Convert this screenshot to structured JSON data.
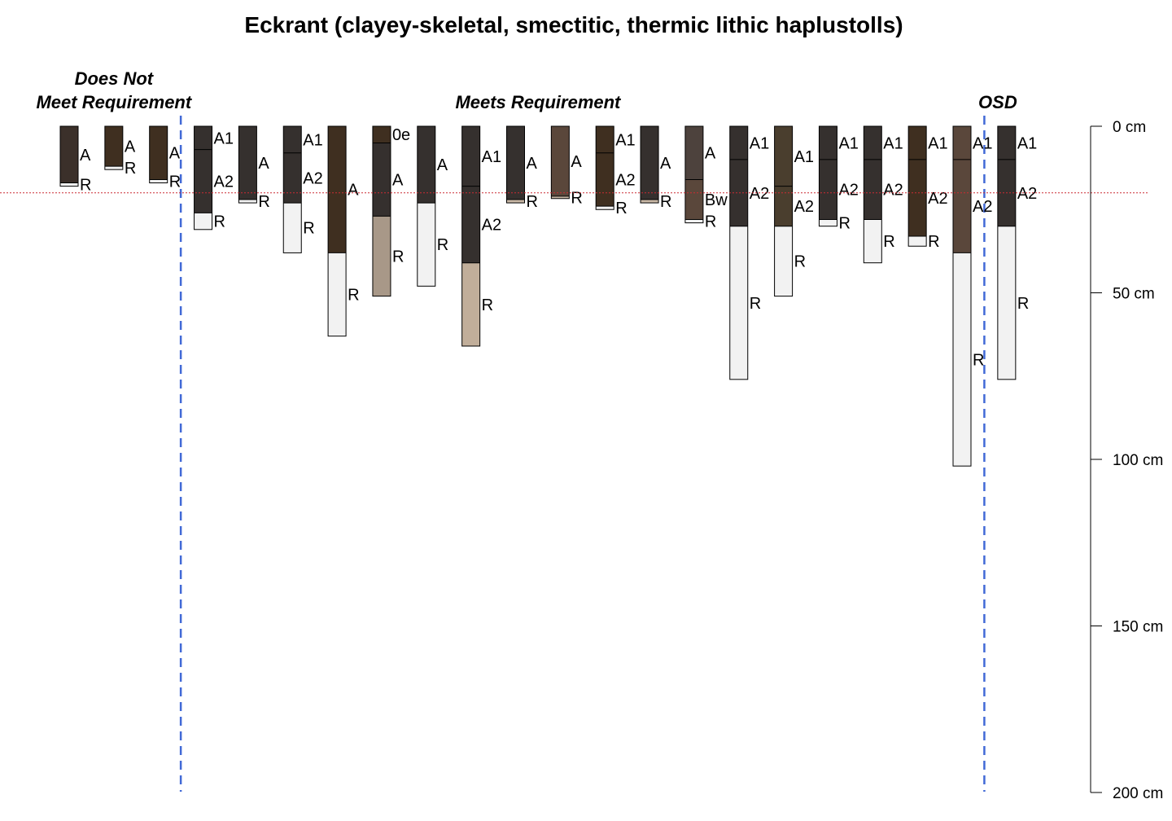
{
  "chart_data": {
    "type": "soil-profile-sketch",
    "title": "Eckrant (clayey-skeletal, smectitic, thermic lithic haplustolls)",
    "group_labels": [
      {
        "lines": [
          "Does Not",
          "Meet Requirement"
        ],
        "center_profile": 1
      },
      {
        "lines": [
          "Meets Requirement"
        ],
        "center_profile": 10.5
      },
      {
        "lines": [
          "OSD"
        ],
        "center_profile": 20.8
      }
    ],
    "group_dividers": [
      2.5,
      20.5
    ],
    "reference_depth_cm": 20,
    "reference_line_color": "#cc2b33",
    "divider_color": "#4169d6",
    "depth_axis": {
      "ticks": [
        0,
        50,
        100,
        150,
        200
      ],
      "unit": "cm",
      "range": [
        0,
        200
      ]
    },
    "profiles": [
      {
        "horizons": [
          {
            "name": "A",
            "top": 0,
            "bottom": 17,
            "color": "#3b302a"
          },
          {
            "name": "R",
            "top": 17,
            "bottom": 18,
            "color": "#f2f2f2"
          }
        ]
      },
      {
        "horizons": [
          {
            "name": "A",
            "top": 0,
            "bottom": 12,
            "color": "#3f2f20"
          },
          {
            "name": "R",
            "top": 12,
            "bottom": 13,
            "color": "#f2f2f2"
          }
        ]
      },
      {
        "horizons": [
          {
            "name": "A",
            "top": 0,
            "bottom": 16,
            "color": "#3f2f20"
          },
          {
            "name": "R",
            "top": 16,
            "bottom": 17,
            "color": "#f2f2f2"
          }
        ]
      },
      {
        "horizons": [
          {
            "name": "A1",
            "top": 0,
            "bottom": 7,
            "color": "#35302e"
          },
          {
            "name": "A2",
            "top": 7,
            "bottom": 26,
            "color": "#35302e"
          },
          {
            "name": "R",
            "top": 26,
            "bottom": 31,
            "color": "#f2f2f2"
          }
        ]
      },
      {
        "horizons": [
          {
            "name": "A",
            "top": 0,
            "bottom": 22,
            "color": "#35302e"
          },
          {
            "name": "R",
            "top": 22,
            "bottom": 23,
            "color": "#f2f2f2"
          }
        ]
      },
      {
        "horizons": [
          {
            "name": "A1",
            "top": 0,
            "bottom": 8,
            "color": "#35302e"
          },
          {
            "name": "A2",
            "top": 8,
            "bottom": 23,
            "color": "#35302e"
          },
          {
            "name": "R",
            "top": 23,
            "bottom": 38,
            "color": "#f2f2f2"
          }
        ]
      },
      {
        "horizons": [
          {
            "name": "A",
            "top": 0,
            "bottom": 38,
            "color": "#3f2f20"
          },
          {
            "name": "R",
            "top": 38,
            "bottom": 63,
            "color": "#f2f2f2"
          }
        ]
      },
      {
        "horizons": [
          {
            "name": "0e",
            "top": 0,
            "bottom": 5,
            "color": "#3f2f20"
          },
          {
            "name": "A",
            "top": 5,
            "bottom": 27,
            "color": "#35302e"
          },
          {
            "name": "R",
            "top": 27,
            "bottom": 51,
            "color": "#a89888"
          }
        ]
      },
      {
        "horizons": [
          {
            "name": "A",
            "top": 0,
            "bottom": 23,
            "color": "#35302e"
          },
          {
            "name": "R",
            "top": 23,
            "bottom": 48,
            "color": "#f2f2f2"
          }
        ]
      },
      {
        "horizons": [
          {
            "name": "A1",
            "top": 0,
            "bottom": 18,
            "color": "#35302e"
          },
          {
            "name": "A2",
            "top": 18,
            "bottom": 41,
            "color": "#35302e"
          },
          {
            "name": "R",
            "top": 41,
            "bottom": 66,
            "color": "#c1ae9a"
          }
        ]
      },
      {
        "horizons": [
          {
            "name": "A",
            "top": 0,
            "bottom": 22,
            "color": "#35302e"
          },
          {
            "name": "R",
            "top": 22,
            "bottom": 23,
            "color": "#c9b8a6"
          }
        ]
      },
      {
        "horizons": [
          {
            "name": "A",
            "top": 0,
            "bottom": 21,
            "color": "#5a473b"
          },
          {
            "name": "R",
            "top": 21,
            "bottom": 21.7,
            "color": "#c9b8a6"
          }
        ]
      },
      {
        "horizons": [
          {
            "name": "A1",
            "top": 0,
            "bottom": 8,
            "color": "#3f2f20"
          },
          {
            "name": "A2",
            "top": 8,
            "bottom": 24,
            "color": "#3f2f20"
          },
          {
            "name": "R",
            "top": 24,
            "bottom": 25,
            "color": "#f2f2f2"
          }
        ]
      },
      {
        "horizons": [
          {
            "name": "A",
            "top": 0,
            "bottom": 22,
            "color": "#35302e"
          },
          {
            "name": "R",
            "top": 22,
            "bottom": 23,
            "color": "#c9b8a6"
          }
        ]
      },
      {
        "horizons": [
          {
            "name": "A",
            "top": 0,
            "bottom": 16,
            "color": "#4d423d"
          },
          {
            "name": "Bw",
            "top": 16,
            "bottom": 28,
            "color": "#5a473b"
          },
          {
            "name": "R",
            "top": 28,
            "bottom": 29,
            "color": "#f2f2f2"
          }
        ]
      },
      {
        "horizons": [
          {
            "name": "A1",
            "top": 0,
            "bottom": 10,
            "color": "#35302e"
          },
          {
            "name": "A2",
            "top": 10,
            "bottom": 30,
            "color": "#35302e"
          },
          {
            "name": "R",
            "top": 30,
            "bottom": 76,
            "color": "#f2f2f2"
          }
        ]
      },
      {
        "horizons": [
          {
            "name": "A1",
            "top": 0,
            "bottom": 18,
            "color": "#4a3e2e"
          },
          {
            "name": "A2",
            "top": 18,
            "bottom": 30,
            "color": "#4a3e2e"
          },
          {
            "name": "R",
            "top": 30,
            "bottom": 51,
            "color": "#f2f2f2"
          }
        ]
      },
      {
        "horizons": [
          {
            "name": "A1",
            "top": 0,
            "bottom": 10,
            "color": "#35302e"
          },
          {
            "name": "A2",
            "top": 10,
            "bottom": 28,
            "color": "#35302e"
          },
          {
            "name": "R",
            "top": 28,
            "bottom": 30,
            "color": "#f2f2f2"
          }
        ]
      },
      {
        "horizons": [
          {
            "name": "A1",
            "top": 0,
            "bottom": 10,
            "color": "#35302e"
          },
          {
            "name": "A2",
            "top": 10,
            "bottom": 28,
            "color": "#35302e"
          },
          {
            "name": "R",
            "top": 28,
            "bottom": 41,
            "color": "#f2f2f2"
          }
        ]
      },
      {
        "horizons": [
          {
            "name": "A1",
            "top": 0,
            "bottom": 10,
            "color": "#3f2f20"
          },
          {
            "name": "A2",
            "top": 10,
            "bottom": 33,
            "color": "#3f2f20"
          },
          {
            "name": "R",
            "top": 33,
            "bottom": 36,
            "color": "#f2f2f2"
          }
        ]
      },
      {
        "horizons": [
          {
            "name": "A1",
            "top": 0,
            "bottom": 10,
            "color": "#5a473b"
          },
          {
            "name": "A2",
            "top": 10,
            "bottom": 38,
            "color": "#5a473b"
          },
          {
            "name": "R",
            "top": 38,
            "bottom": 102,
            "color": "#f2f2f2"
          }
        ]
      },
      {
        "horizons": [
          {
            "name": "A1",
            "top": 0,
            "bottom": 10,
            "color": "#35302e"
          },
          {
            "name": "A2",
            "top": 10,
            "bottom": 30,
            "color": "#35302e"
          },
          {
            "name": "R",
            "top": 30,
            "bottom": 76,
            "color": "#f2f2f2"
          }
        ]
      }
    ]
  }
}
